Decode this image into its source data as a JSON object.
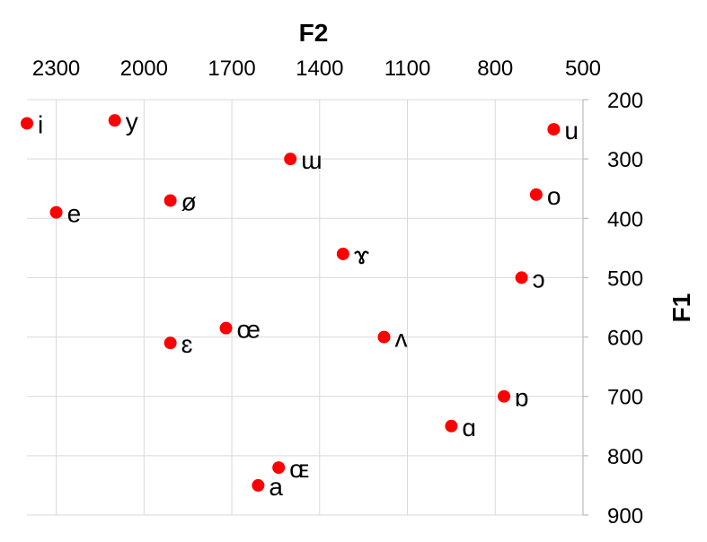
{
  "chart_data": {
    "type": "scatter",
    "x_title": "F2",
    "y_title": "F1",
    "x_axis": {
      "reversed": true,
      "position": "top",
      "min": 2400,
      "max": 500,
      "ticks": [
        2300,
        2000,
        1700,
        1400,
        1100,
        800,
        500
      ]
    },
    "y_axis": {
      "reversed": true,
      "position": "right",
      "min": 200,
      "max": 900,
      "ticks": [
        200,
        300,
        400,
        500,
        600,
        700,
        800,
        900
      ]
    },
    "grid": true,
    "marker_color": "#ff0000",
    "points": [
      {
        "label": "i",
        "x": 2400,
        "y": 240
      },
      {
        "label": "y",
        "x": 2100,
        "y": 235
      },
      {
        "label": "u",
        "x": 600,
        "y": 250
      },
      {
        "label": "ɯ",
        "x": 1500,
        "y": 300
      },
      {
        "label": "o",
        "x": 660,
        "y": 360
      },
      {
        "label": "e",
        "x": 2300,
        "y": 390
      },
      {
        "label": "ø",
        "x": 1910,
        "y": 370
      },
      {
        "label": "ɤ",
        "x": 1320,
        "y": 460
      },
      {
        "label": "ɔ",
        "x": 710,
        "y": 500
      },
      {
        "label": "œ",
        "x": 1720,
        "y": 585
      },
      {
        "label": "ɛ",
        "x": 1910,
        "y": 610
      },
      {
        "label": "ʌ",
        "x": 1180,
        "y": 600
      },
      {
        "label": "ɒ",
        "x": 770,
        "y": 700
      },
      {
        "label": "ɑ",
        "x": 950,
        "y": 750
      },
      {
        "label": "ɶ",
        "x": 1540,
        "y": 820
      },
      {
        "label": "a",
        "x": 1610,
        "y": 850
      }
    ]
  }
}
